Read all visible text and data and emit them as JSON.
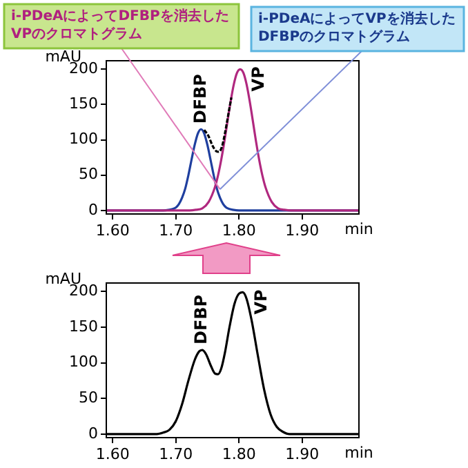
{
  "chart_data": [
    {
      "type": "line",
      "xlabel": "min",
      "ylabel": "mAU",
      "xlim": [
        1.59,
        1.99
      ],
      "ylim": [
        -5,
        212
      ],
      "xticks": [
        {
          "value": 1.6,
          "label": "1.60"
        },
        {
          "value": 1.7,
          "label": "1.70"
        },
        {
          "value": 1.8,
          "label": "1.80"
        },
        {
          "value": 1.9,
          "label": "1.90"
        }
      ],
      "yticks": [
        0,
        50,
        100,
        150,
        200
      ],
      "grid": false,
      "legend": false,
      "annotations": [
        {
          "text": "i-PDeAによってDFBPを消去したVPのクロマトグラム",
          "x": 1.77,
          "y": 30
        },
        {
          "text": "i-PDeAによってVPを消去したDFBPのクロマトグラム",
          "x": 1.77,
          "y": 30
        }
      ],
      "series": [
        {
          "name": "DFBP",
          "color": "#1f3f9f",
          "x": [
            1.59,
            1.68,
            1.69,
            1.695,
            1.7,
            1.705,
            1.71,
            1.715,
            1.72,
            1.725,
            1.73,
            1.735,
            1.74,
            1.745,
            1.75,
            1.755,
            1.76,
            1.765,
            1.77,
            1.775,
            1.78,
            1.785,
            1.79,
            1.8,
            1.99
          ],
          "values": [
            0,
            0,
            1,
            2,
            4,
            9,
            18,
            31,
            50,
            72,
            93,
            109,
            115,
            109,
            93,
            72,
            50,
            31,
            18,
            9,
            4,
            2,
            1,
            0,
            0
          ]
        },
        {
          "name": "VP",
          "color": "#b0287f",
          "x": [
            1.59,
            1.722,
            1.732,
            1.742,
            1.752,
            1.762,
            1.767,
            1.772,
            1.777,
            1.782,
            1.787,
            1.792,
            1.797,
            1.802,
            1.807,
            1.812,
            1.817,
            1.822,
            1.827,
            1.832,
            1.837,
            1.842,
            1.852,
            1.862,
            1.872,
            1.882,
            1.99
          ],
          "values": [
            0,
            0,
            1,
            3,
            12,
            33,
            50,
            72,
            98,
            127,
            155,
            179,
            195,
            200,
            195,
            179,
            155,
            127,
            98,
            72,
            50,
            33,
            12,
            3,
            1,
            0,
            0
          ]
        },
        {
          "color": "#000000",
          "line_style": "dashed",
          "x": [
            1.745,
            1.752,
            1.758,
            1.764,
            1.768,
            1.773,
            1.778,
            1.783,
            1.788
          ],
          "values": [
            114,
            105,
            92,
            84,
            83,
            90,
            110,
            135,
            160
          ]
        }
      ]
    },
    {
      "type": "line",
      "xlabel": "min",
      "ylabel": "mAU",
      "xlim": [
        1.59,
        1.99
      ],
      "ylim": [
        -5,
        212
      ],
      "xticks": [
        {
          "value": 1.6,
          "label": "1.60"
        },
        {
          "value": 1.7,
          "label": "1.70"
        },
        {
          "value": 1.8,
          "label": "1.80"
        },
        {
          "value": 1.9,
          "label": "1.90"
        }
      ],
      "yticks": [
        0,
        50,
        100,
        150,
        200
      ],
      "grid": false,
      "legend": false,
      "annotations": [
        {
          "text": "DFBP",
          "x": 1.742,
          "y": 118
        },
        {
          "text": "VP",
          "x": 1.806,
          "y": 199
        }
      ],
      "series": [
        {
          "color": "#000000",
          "x": [
            1.59,
            1.67,
            1.68,
            1.69,
            1.7,
            1.71,
            1.72,
            1.73,
            1.737,
            1.742,
            1.748,
            1.755,
            1.762,
            1.767,
            1.772,
            1.778,
            1.785,
            1.793,
            1.8,
            1.806,
            1.812,
            1.82,
            1.83,
            1.84,
            1.85,
            1.86,
            1.87,
            1.88,
            1.99
          ],
          "values": [
            0,
            0,
            2,
            6,
            18,
            42,
            75,
            104,
            116,
            118,
            112,
            97,
            85,
            84,
            92,
            115,
            150,
            183,
            197,
            199,
            190,
            160,
            110,
            62,
            28,
            10,
            3,
            0,
            0
          ]
        }
      ]
    }
  ]
}
